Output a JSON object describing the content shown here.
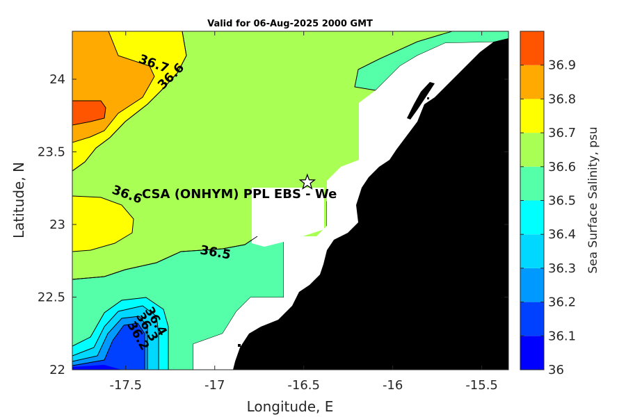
{
  "chart_data": {
    "type": "heatmap",
    "title": "Valid for 06-Aug-2025 2000 GMT",
    "xlabel": "Longitude, E",
    "ylabel": "Latitude, N",
    "xlim": [
      -17.8,
      -15.35
    ],
    "ylim": [
      22,
      24.33
    ],
    "x_ticks": [
      -17.5,
      -17,
      -16.5,
      -16,
      -15.5
    ],
    "y_ticks": [
      22,
      22.5,
      23,
      23.5,
      24
    ],
    "colorbar": {
      "label": "Sea Surface Salinity, psu",
      "levels": [
        36,
        36.1,
        36.2,
        36.3,
        36.4,
        36.5,
        36.6,
        36.7,
        36.8,
        36.9
      ],
      "colors": [
        "#0000ff",
        "#0040ff",
        "#0099ff",
        "#00d8ff",
        "#00ffff",
        "#55ffaa",
        "#aaff55",
        "#ffff00",
        "#ffaa00",
        "#ff5500"
      ]
    },
    "contour_labels": [
      {
        "text": "36.7",
        "lon": -17.35,
        "lat": 24.08
      },
      {
        "text": "36.6",
        "lon": -17.23,
        "lat": 24.0
      },
      {
        "text": "36.6",
        "lon": -17.5,
        "lat": 23.18
      },
      {
        "text": "36.5",
        "lon": -17.0,
        "lat": 22.78
      },
      {
        "text": "36.4",
        "lon": -17.35,
        "lat": 22.32
      },
      {
        "text": "36.3",
        "lon": -17.4,
        "lat": 22.28
      },
      {
        "text": "36.2",
        "lon": -17.45,
        "lat": 22.22
      }
    ],
    "site": {
      "label": "CSA (ONHYM) PPL EBS - We",
      "lon": -16.48,
      "lat": 23.29
    }
  },
  "colors": {
    "land": "#000000",
    "nodata": "#ffffff",
    "contour": "#000000"
  }
}
